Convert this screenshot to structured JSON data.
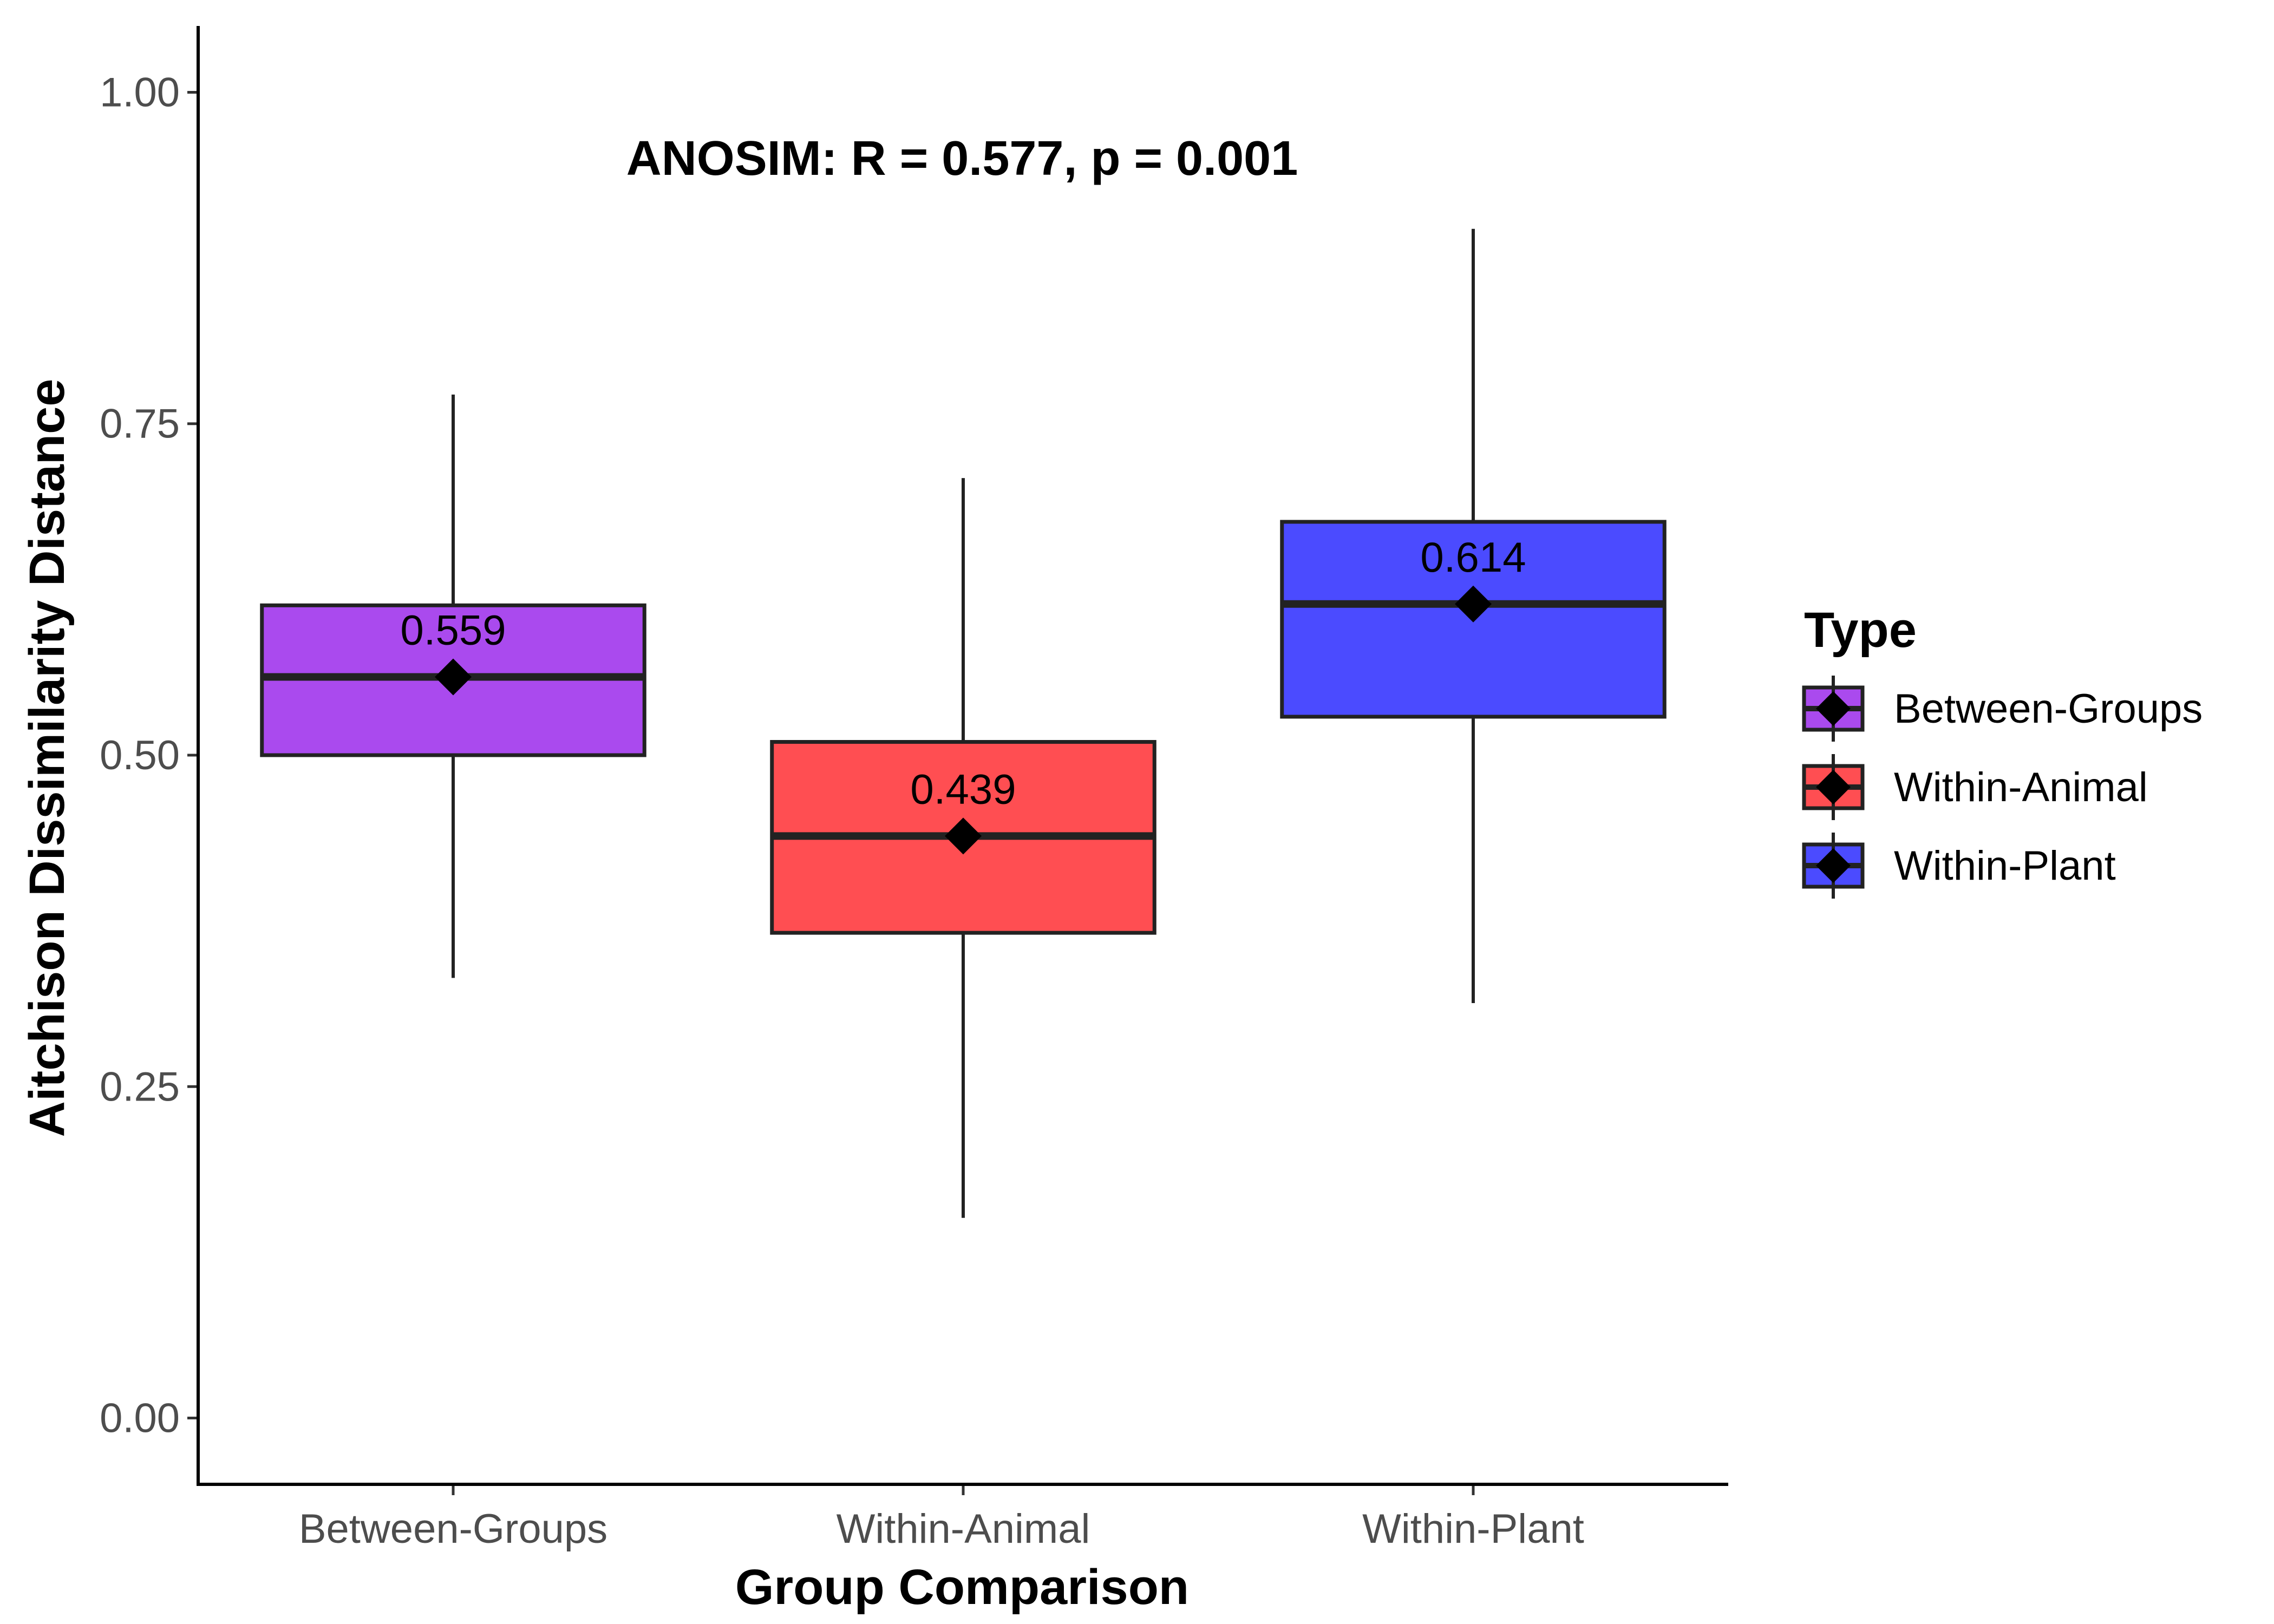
{
  "chart_data": {
    "type": "boxplot",
    "xlabel": "Group Comparison",
    "ylabel": "Aitchison Dissimilarity Distance",
    "ylim": [
      -0.05,
      1.05
    ],
    "yticks": [
      "0.00",
      "0.25",
      "0.50",
      "0.75",
      "1.00"
    ],
    "ytick_values": [
      0.0,
      0.25,
      0.5,
      0.75,
      1.0
    ],
    "annotation": "ANOSIM: R = 0.577, p = 0.001",
    "grid": false,
    "legend": {
      "title": "Type",
      "position": "right"
    },
    "categories": [
      "Between-Groups",
      "Within-Animal",
      "Within-Plant"
    ],
    "series": [
      {
        "name": "Between-Groups",
        "color": "#AA4AEE",
        "whisker_low": 0.332,
        "q1": 0.5,
        "median": 0.559,
        "q3": 0.613,
        "whisker_high": 0.772,
        "mean": 0.559,
        "mean_label": "0.559"
      },
      {
        "name": "Within-Animal",
        "color": "#FF4E52",
        "whisker_low": 0.151,
        "q1": 0.366,
        "median": 0.439,
        "q3": 0.51,
        "whisker_high": 0.709,
        "mean": 0.439,
        "mean_label": "0.439"
      },
      {
        "name": "Within-Plant",
        "color": "#4B4BFF",
        "whisker_low": 0.313,
        "q1": 0.529,
        "median": 0.614,
        "q3": 0.676,
        "whisker_high": 0.897,
        "mean": 0.614,
        "mean_label": "0.614"
      }
    ]
  }
}
